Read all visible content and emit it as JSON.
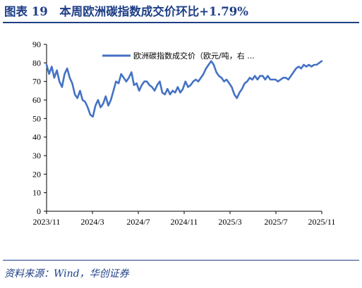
{
  "figure": {
    "title": "图表 19　本周欧洲碳指数成交价环比+1.79%",
    "source": "资料来源：Wind，华创证券"
  },
  "colors": {
    "series": "#4472c4",
    "accent": "#1f3f86"
  },
  "chart_data": {
    "type": "line",
    "legend": "欧洲碳指数成交价（欧元/吨，右 ...",
    "legend_placement": "top",
    "ylim": [
      0,
      90
    ],
    "yticks": [
      0,
      10,
      20,
      30,
      40,
      50,
      60,
      70,
      80,
      90
    ],
    "xticks": [
      "2023/11",
      "2024/3",
      "2024/7",
      "2024/11",
      "2025/3",
      "2025/7",
      "2025/11"
    ],
    "grid": false,
    "series": [
      {
        "name": "欧洲碳指数成交价（欧元/吨，右 ...",
        "x": [
          "2023-11-01",
          "2023-11-08",
          "2023-11-15",
          "2023-11-22",
          "2023-11-29",
          "2023-12-06",
          "2023-12-13",
          "2023-12-20",
          "2023-12-27",
          "2024-01-03",
          "2024-01-10",
          "2024-01-17",
          "2024-01-24",
          "2024-01-31",
          "2024-02-07",
          "2024-02-14",
          "2024-02-21",
          "2024-02-28",
          "2024-03-06",
          "2024-03-13",
          "2024-03-20",
          "2024-03-27",
          "2024-04-03",
          "2024-04-10",
          "2024-04-17",
          "2024-04-24",
          "2024-05-01",
          "2024-05-08",
          "2024-05-15",
          "2024-05-22",
          "2024-05-29",
          "2024-06-05",
          "2024-06-12",
          "2024-06-19",
          "2024-06-26",
          "2024-07-03",
          "2024-07-10",
          "2024-07-17",
          "2024-07-24",
          "2024-07-31",
          "2024-08-07",
          "2024-08-14",
          "2024-08-21",
          "2024-08-28",
          "2024-09-04",
          "2024-09-11",
          "2024-09-18",
          "2024-09-25",
          "2024-10-02",
          "2024-10-09",
          "2024-10-16",
          "2024-10-23",
          "2024-10-30",
          "2024-11-06",
          "2024-11-13",
          "2024-11-20",
          "2024-11-27",
          "2024-12-04",
          "2024-12-11",
          "2024-12-18",
          "2024-12-25",
          "2025-01-01",
          "2025-01-08",
          "2025-01-15",
          "2025-01-22",
          "2025-01-29",
          "2025-02-05",
          "2025-02-12",
          "2025-02-19",
          "2025-02-26",
          "2025-03-05",
          "2025-03-12",
          "2025-03-19",
          "2025-03-26",
          "2025-04-02",
          "2025-04-09",
          "2025-04-16",
          "2025-04-23",
          "2025-04-30",
          "2025-05-07",
          "2025-05-14",
          "2025-05-21",
          "2025-05-28",
          "2025-06-04",
          "2025-06-11",
          "2025-06-18",
          "2025-06-25",
          "2025-07-02",
          "2025-07-09",
          "2025-07-16",
          "2025-07-23",
          "2025-07-30",
          "2025-08-06",
          "2025-08-13",
          "2025-08-20",
          "2025-08-27",
          "2025-09-03",
          "2025-09-10",
          "2025-09-17",
          "2025-09-24",
          "2025-10-01",
          "2025-10-08",
          "2025-10-15",
          "2025-10-22",
          "2025-10-29",
          "2025-11-05",
          "2025-11-12",
          "2025-11-19"
        ],
        "values": [
          79,
          74,
          78,
          72,
          76,
          70,
          67,
          74,
          77,
          72,
          69,
          63,
          61,
          65,
          60,
          59,
          56,
          52,
          51,
          57,
          60,
          56,
          58,
          62,
          57,
          60,
          65,
          70,
          69,
          74,
          72,
          70,
          72,
          75,
          68,
          69,
          65,
          68,
          70,
          70,
          68,
          67,
          65,
          68,
          70,
          64,
          63,
          66,
          63,
          65,
          64,
          67,
          64,
          66,
          70,
          67,
          68,
          70,
          71,
          70,
          72,
          74,
          77,
          79,
          81,
          79,
          75,
          73,
          72,
          70,
          71,
          69,
          67,
          63,
          61,
          64,
          66,
          69,
          70,
          72,
          71,
          73,
          71,
          73,
          73,
          71,
          73,
          71,
          71,
          71,
          70,
          71,
          72,
          72,
          71,
          73,
          75,
          77,
          78,
          77,
          79,
          78,
          79,
          78,
          79,
          79,
          80,
          81
        ]
      }
    ]
  }
}
